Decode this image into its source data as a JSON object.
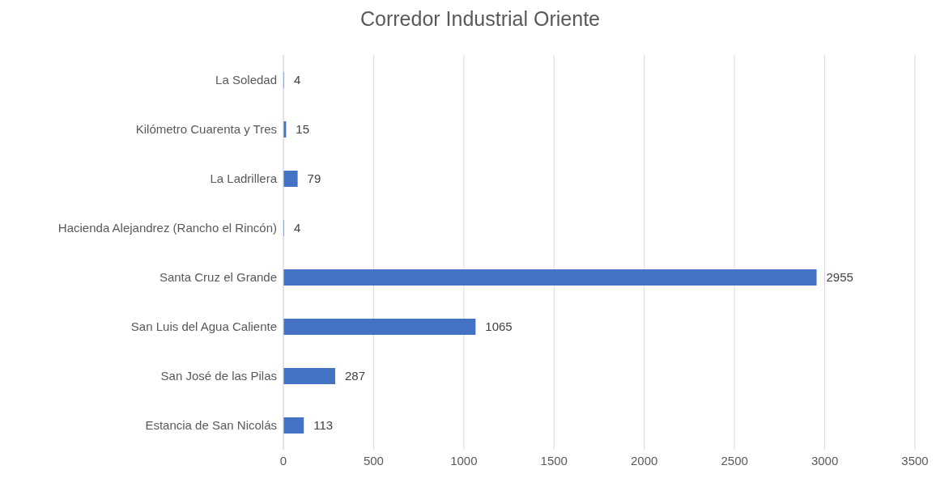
{
  "chart_data": {
    "type": "bar",
    "orientation": "horizontal",
    "title": "Corredor Industrial Oriente",
    "categories": [
      "La Soledad",
      "Kilómetro Cuarenta y Tres",
      "La Ladrillera",
      "Hacienda Alejandrez (Rancho el Rincón)",
      "Santa Cruz el Grande",
      "San Luis del Agua Caliente",
      "San José de las Pilas",
      "Estancia de San Nicolás"
    ],
    "values": [
      4,
      15,
      79,
      4,
      2955,
      1065,
      287,
      113
    ],
    "color": "#4472c4",
    "xlim": [
      0,
      3500
    ],
    "xticks": [
      0,
      500,
      1000,
      1500,
      2000,
      2500,
      3000,
      3500
    ],
    "grid": "x",
    "data_labels": true
  }
}
